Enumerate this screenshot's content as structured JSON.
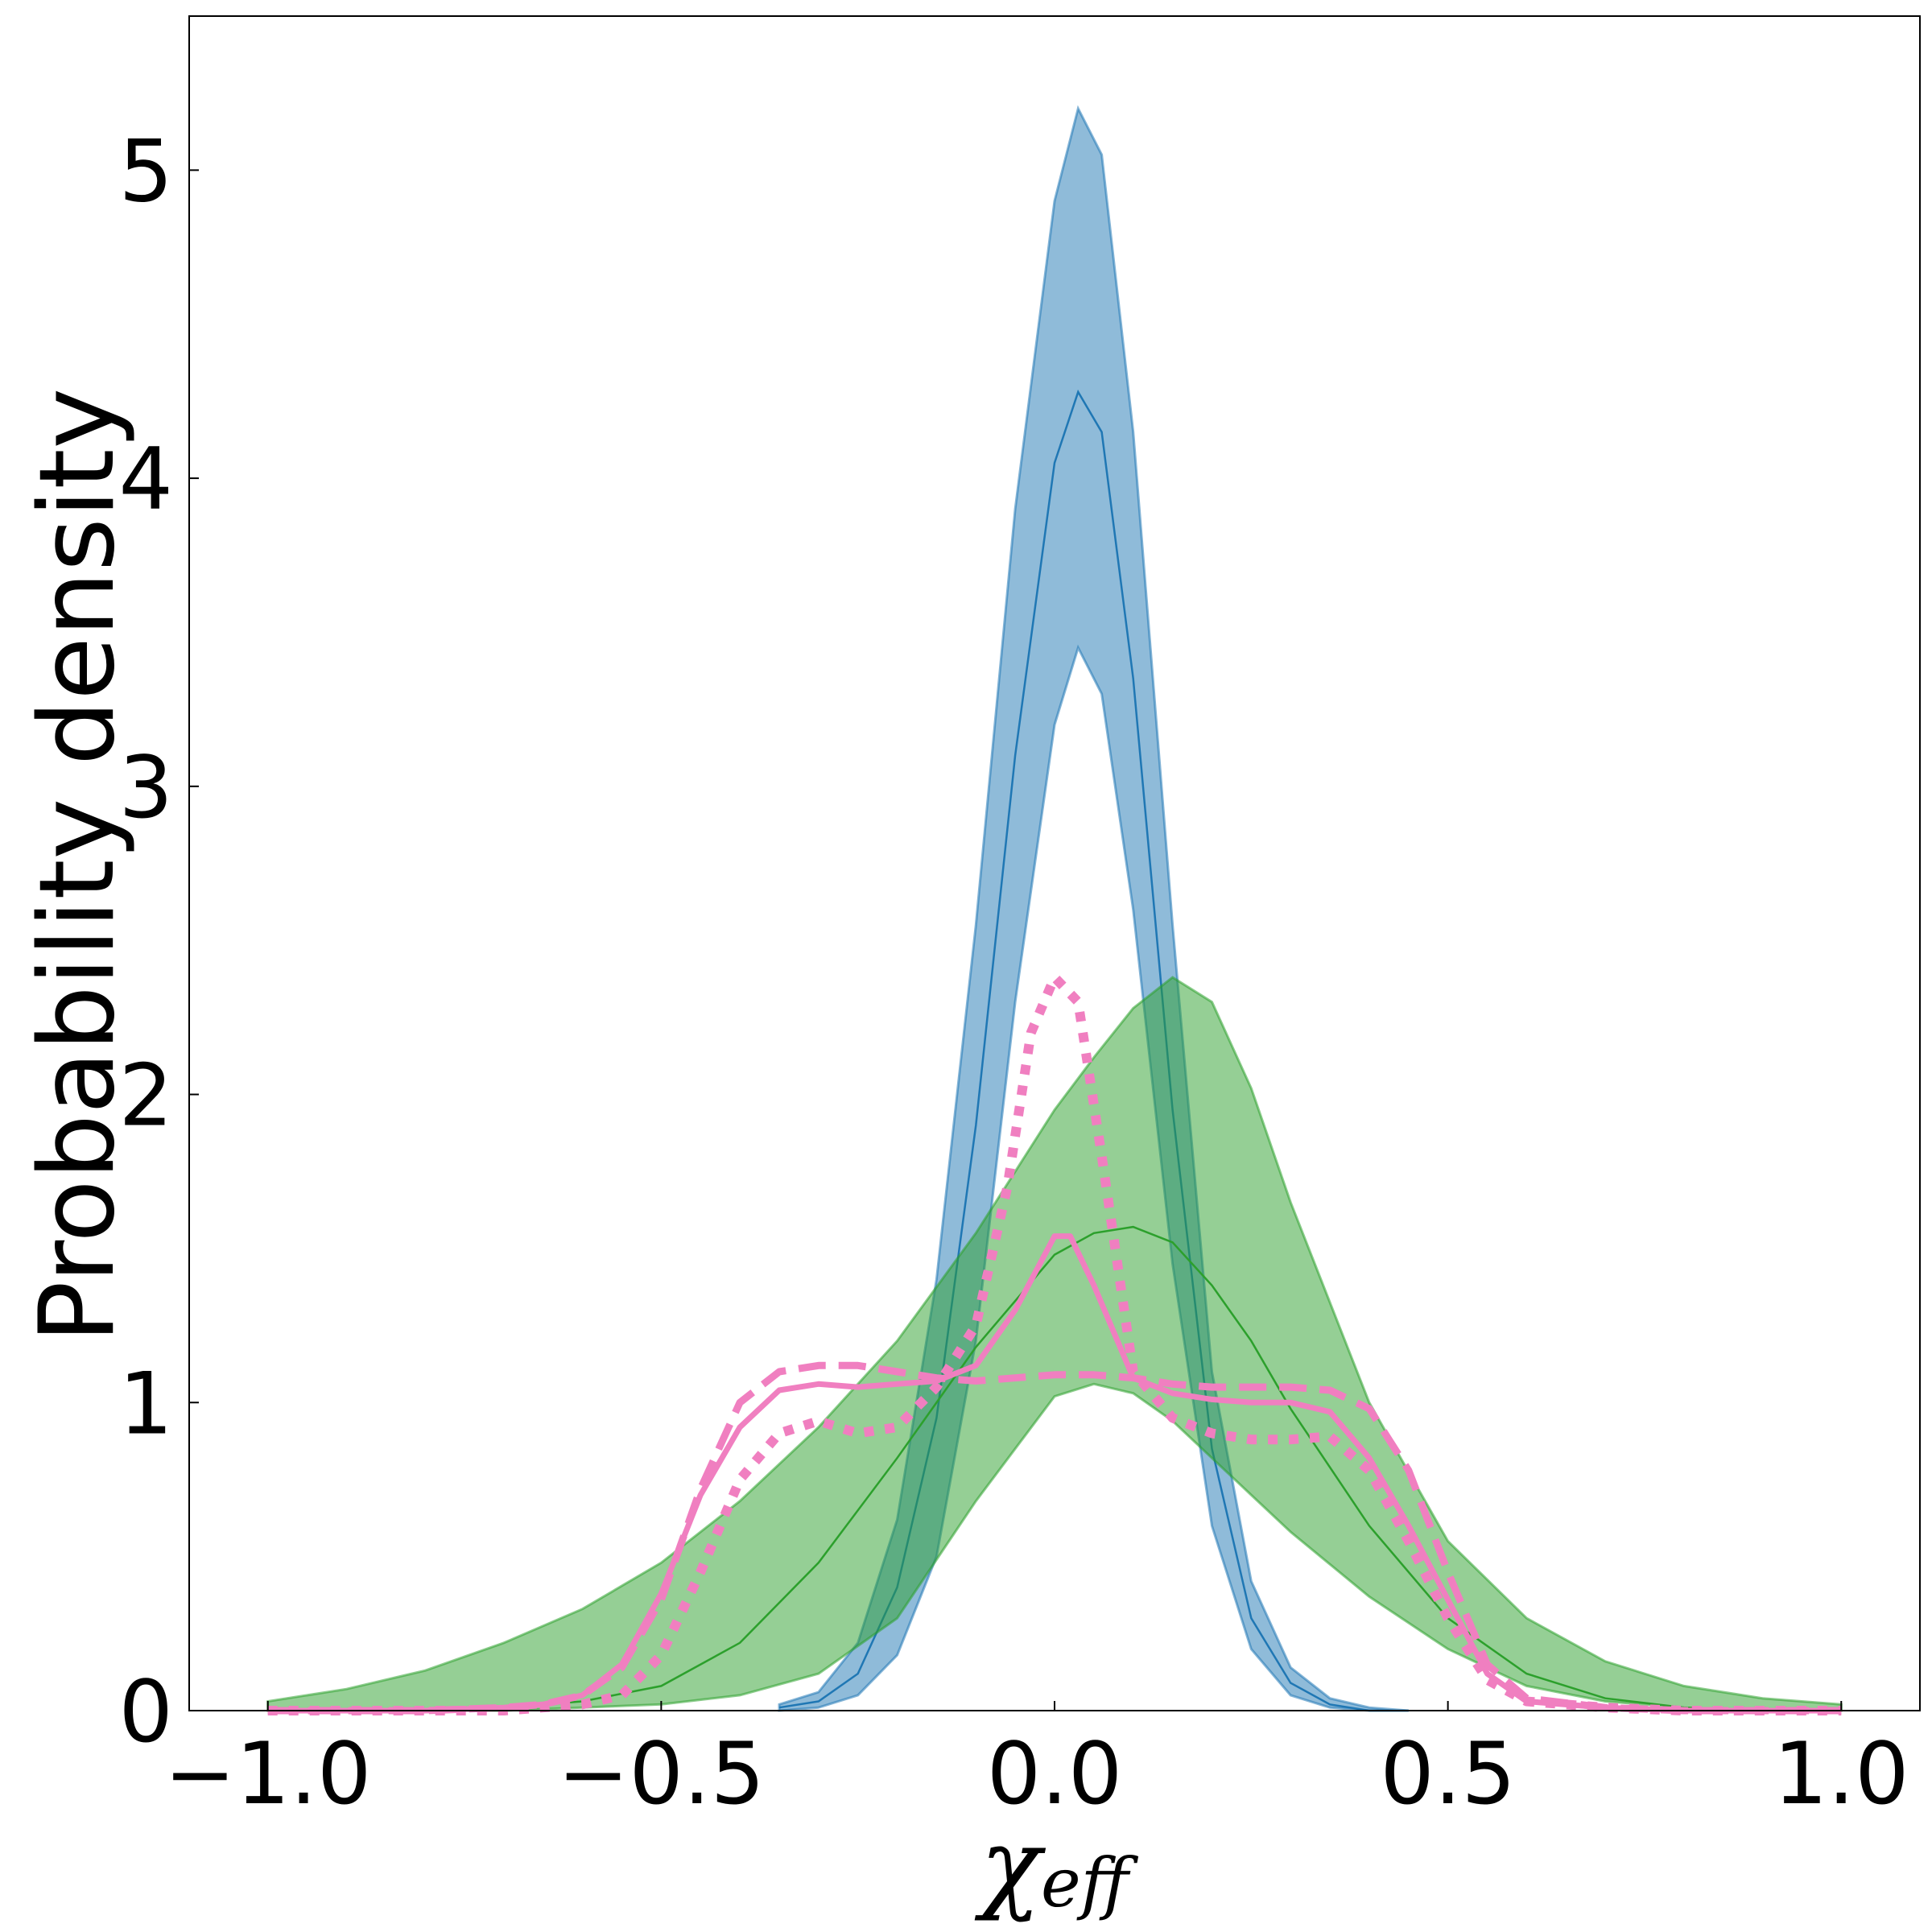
{
  "chart_data": {
    "type": "line",
    "title": "",
    "xlabel": "χ",
    "xlabel_sub": "eff",
    "ylabel": "Probability density",
    "xlim": [
      -1.1,
      1.1
    ],
    "ylim": [
      0,
      5.5
    ],
    "x_ticks": [
      -1.0,
      -0.5,
      0.0,
      0.5,
      1.0
    ],
    "x_tick_labels": [
      "−1.0",
      "−0.5",
      "0.0",
      "0.5",
      "1.0"
    ],
    "y_ticks": [
      0,
      1,
      2,
      3,
      4,
      5
    ],
    "y_tick_labels": [
      "0",
      "1",
      "2",
      "3",
      "4",
      "5"
    ],
    "grid": false,
    "legend": "none",
    "colors": {
      "blue_fill": "#1f77b4",
      "blue_line": "#1f77b4",
      "green_fill": "#2ca02c",
      "green_line": "#2ca02c",
      "pink": "#f07fc0"
    },
    "bands": [
      {
        "color": "blue",
        "x": [
          -0.35,
          -0.3,
          -0.25,
          -0.2,
          -0.15,
          -0.1,
          -0.05,
          0.0,
          0.03,
          0.06,
          0.1,
          0.15,
          0.2,
          0.25,
          0.3,
          0.35,
          0.4,
          0.45
        ],
        "upper": [
          0.02,
          0.06,
          0.22,
          0.62,
          1.4,
          2.55,
          3.9,
          4.9,
          5.2,
          5.05,
          4.15,
          2.55,
          1.1,
          0.42,
          0.14,
          0.04,
          0.01,
          0.0
        ],
        "lower": [
          0.0,
          0.01,
          0.05,
          0.18,
          0.5,
          1.2,
          2.3,
          3.2,
          3.45,
          3.3,
          2.6,
          1.45,
          0.6,
          0.2,
          0.05,
          0.01,
          0.0,
          0.0
        ],
        "median": [
          0.01,
          0.03,
          0.12,
          0.4,
          0.95,
          1.9,
          3.1,
          4.05,
          4.28,
          4.15,
          3.35,
          1.95,
          0.85,
          0.3,
          0.09,
          0.02,
          0.0,
          0.0
        ]
      },
      {
        "color": "green",
        "x": [
          -1.0,
          -0.9,
          -0.8,
          -0.7,
          -0.6,
          -0.5,
          -0.4,
          -0.3,
          -0.2,
          -0.1,
          0.0,
          0.05,
          0.1,
          0.15,
          0.2,
          0.25,
          0.3,
          0.4,
          0.5,
          0.6,
          0.7,
          0.8,
          0.9,
          1.0
        ],
        "upper": [
          0.03,
          0.07,
          0.13,
          0.22,
          0.33,
          0.48,
          0.68,
          0.92,
          1.2,
          1.55,
          1.95,
          2.12,
          2.28,
          2.38,
          2.3,
          2.02,
          1.65,
          1.0,
          0.55,
          0.3,
          0.16,
          0.08,
          0.04,
          0.02
        ],
        "lower": [
          0.0,
          0.0,
          0.0,
          0.0,
          0.01,
          0.02,
          0.05,
          0.12,
          0.3,
          0.68,
          1.02,
          1.06,
          1.03,
          0.94,
          0.82,
          0.7,
          0.58,
          0.37,
          0.2,
          0.08,
          0.03,
          0.01,
          0.0,
          0.0
        ],
        "median": [
          0.0,
          0.0,
          0.0,
          0.01,
          0.03,
          0.08,
          0.22,
          0.48,
          0.82,
          1.18,
          1.48,
          1.55,
          1.57,
          1.52,
          1.38,
          1.2,
          0.98,
          0.6,
          0.3,
          0.12,
          0.04,
          0.01,
          0.0,
          0.0
        ]
      }
    ],
    "series": [
      {
        "style": "solid",
        "x": [
          -1.0,
          -0.8,
          -0.7,
          -0.65,
          -0.6,
          -0.55,
          -0.5,
          -0.45,
          -0.4,
          -0.35,
          -0.3,
          -0.25,
          -0.2,
          -0.15,
          -0.1,
          -0.05,
          0.0,
          0.02,
          0.05,
          0.1,
          0.15,
          0.2,
          0.25,
          0.3,
          0.35,
          0.4,
          0.45,
          0.5,
          0.55,
          0.6,
          0.7,
          0.8,
          1.0
        ],
        "y": [
          0.0,
          0.0,
          0.01,
          0.02,
          0.05,
          0.15,
          0.38,
          0.7,
          0.92,
          1.04,
          1.06,
          1.05,
          1.06,
          1.07,
          1.12,
          1.3,
          1.54,
          1.54,
          1.38,
          1.08,
          1.03,
          1.01,
          1.0,
          1.0,
          0.97,
          0.82,
          0.6,
          0.36,
          0.12,
          0.03,
          0.01,
          0.0,
          0.0
        ]
      },
      {
        "style": "dashed",
        "x": [
          -1.0,
          -0.8,
          -0.7,
          -0.65,
          -0.6,
          -0.55,
          -0.5,
          -0.45,
          -0.4,
          -0.35,
          -0.3,
          -0.25,
          -0.2,
          -0.15,
          -0.1,
          -0.05,
          0.0,
          0.05,
          0.1,
          0.15,
          0.2,
          0.25,
          0.3,
          0.35,
          0.4,
          0.45,
          0.5,
          0.55,
          0.6,
          0.7,
          0.8,
          1.0
        ],
        "y": [
          0.0,
          0.0,
          0.01,
          0.02,
          0.05,
          0.14,
          0.36,
          0.72,
          1.0,
          1.1,
          1.12,
          1.12,
          1.1,
          1.08,
          1.07,
          1.08,
          1.09,
          1.09,
          1.08,
          1.06,
          1.05,
          1.05,
          1.05,
          1.04,
          0.98,
          0.78,
          0.45,
          0.15,
          0.04,
          0.01,
          0.0,
          0.0
        ]
      },
      {
        "style": "dotted",
        "x": [
          -1.0,
          -0.8,
          -0.7,
          -0.65,
          -0.6,
          -0.55,
          -0.5,
          -0.45,
          -0.4,
          -0.35,
          -0.3,
          -0.25,
          -0.2,
          -0.15,
          -0.1,
          -0.06,
          -0.03,
          0.0,
          0.03,
          0.06,
          0.1,
          0.15,
          0.2,
          0.25,
          0.3,
          0.35,
          0.4,
          0.45,
          0.5,
          0.55,
          0.6,
          0.7,
          0.8,
          1.0
        ],
        "y": [
          0.0,
          0.0,
          0.0,
          0.01,
          0.02,
          0.05,
          0.18,
          0.45,
          0.75,
          0.9,
          0.94,
          0.9,
          0.92,
          1.05,
          1.25,
          1.7,
          2.2,
          2.38,
          2.3,
          1.8,
          1.1,
          0.95,
          0.9,
          0.88,
          0.88,
          0.89,
          0.78,
          0.55,
          0.3,
          0.1,
          0.03,
          0.01,
          0.0,
          0.0
        ]
      }
    ]
  }
}
